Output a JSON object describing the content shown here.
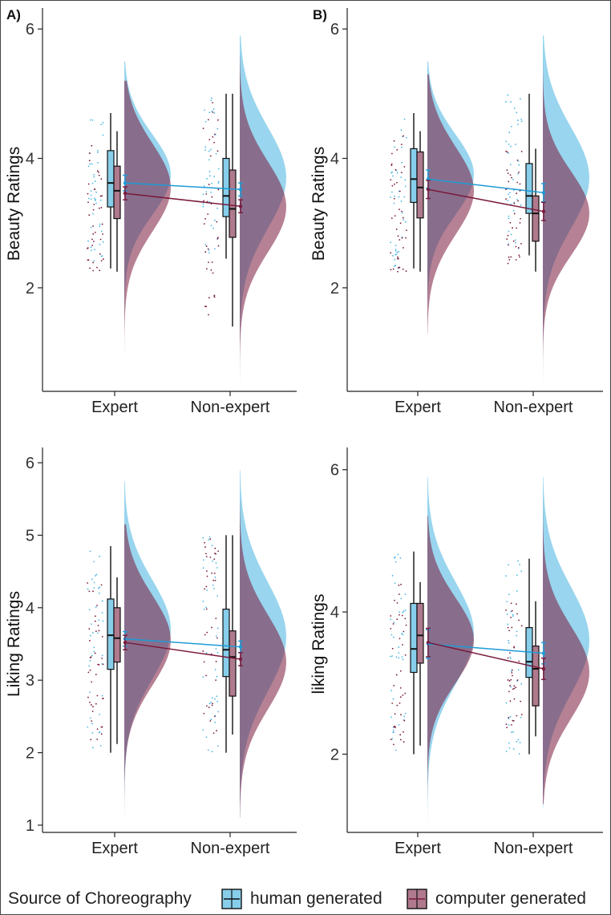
{
  "colors": {
    "human": "#87CEEB",
    "computer": "#7A1A3C",
    "overlap": "#7E6C8C",
    "human_line": "#1E9BD7",
    "computer_line": "#7A1A3C"
  },
  "legend": {
    "title": "Source of Choreography",
    "items": [
      {
        "label": "human generated",
        "key": "human"
      },
      {
        "label": "computer generated",
        "key": "computer"
      }
    ]
  },
  "chart_data": [
    {
      "type": "raincloud",
      "tag": "A)",
      "ylabel": "Beauty Ratings",
      "categories": [
        "Expert",
        "Non-expert"
      ],
      "ylim": [
        0.4,
        6.2
      ],
      "yticks": [
        2,
        4,
        6
      ],
      "groups": [
        {
          "category": "Expert",
          "series": [
            {
              "key": "human",
              "box": [
                2.3,
                3.25,
                3.62,
                4.12,
                4.7
              ],
              "mean": 3.62,
              "ci": [
                3.5,
                3.74
              ],
              "density": {
                "mean": 3.75,
                "sd": 0.62,
                "min": 1.0,
                "max": 5.5
              }
            },
            {
              "key": "computer",
              "box": [
                2.25,
                3.07,
                3.5,
                3.88,
                4.42
              ],
              "mean": 3.46,
              "ci": [
                3.36,
                3.56
              ],
              "density": {
                "mean": 3.55,
                "sd": 0.68,
                "min": 1.0,
                "max": 5.2
              }
            }
          ]
        },
        {
          "category": "Non-expert",
          "series": [
            {
              "key": "human",
              "box": [
                2.45,
                3.1,
                3.42,
                4.0,
                5.0
              ],
              "mean": 3.52,
              "ci": [
                3.42,
                3.62
              ],
              "density": {
                "mean": 3.7,
                "sd": 0.78,
                "min": 0.45,
                "max": 5.9
              }
            },
            {
              "key": "computer",
              "box": [
                1.4,
                2.78,
                3.22,
                3.82,
                5.0
              ],
              "mean": 3.26,
              "ci": [
                3.16,
                3.36
              ],
              "density": {
                "mean": 3.25,
                "sd": 0.7,
                "min": 0.45,
                "max": 5.6
              }
            }
          ]
        }
      ]
    },
    {
      "type": "raincloud",
      "tag": "B)",
      "ylabel": "Beauty Ratings",
      "categories": [
        "Expert",
        "Non-expert"
      ],
      "ylim": [
        0.4,
        6.2
      ],
      "yticks": [
        2,
        4,
        6
      ],
      "groups": [
        {
          "category": "Expert",
          "series": [
            {
              "key": "human",
              "box": [
                2.3,
                3.32,
                3.68,
                4.15,
                4.7
              ],
              "mean": 3.68,
              "ci": [
                3.54,
                3.82
              ],
              "density": {
                "mean": 3.75,
                "sd": 0.62,
                "min": 1.3,
                "max": 5.5
              }
            },
            {
              "key": "computer",
              "box": [
                2.25,
                3.08,
                3.55,
                4.1,
                4.42
              ],
              "mean": 3.52,
              "ci": [
                3.38,
                3.66
              ],
              "density": {
                "mean": 3.5,
                "sd": 0.68,
                "min": 1.3,
                "max": 5.3
              }
            }
          ]
        },
        {
          "category": "Non-expert",
          "series": [
            {
              "key": "human",
              "box": [
                2.5,
                3.15,
                3.42,
                3.92,
                5.0
              ],
              "mean": 3.47,
              "ci": [
                3.33,
                3.61
              ],
              "density": {
                "mean": 3.7,
                "sd": 0.78,
                "min": 0.45,
                "max": 5.9
              }
            },
            {
              "key": "computer",
              "box": [
                2.25,
                2.72,
                3.15,
                3.42,
                4.15
              ],
              "mean": 3.18,
              "ci": [
                3.04,
                3.32
              ],
              "density": {
                "mean": 3.15,
                "sd": 0.65,
                "min": 0.45,
                "max": 5.5
              }
            }
          ]
        }
      ]
    },
    {
      "type": "raincloud",
      "tag": "",
      "ylabel": "Liking Ratings",
      "categories": [
        "Expert",
        "Non-expert"
      ],
      "ylim": [
        0.9,
        6.1
      ],
      "yticks": [
        1,
        2,
        3,
        4,
        5,
        6
      ],
      "groups": [
        {
          "category": "Expert",
          "series": [
            {
              "key": "human",
              "box": [
                2.0,
                3.15,
                3.62,
                4.12,
                4.85
              ],
              "mean": 3.57,
              "ci": [
                3.47,
                3.67
              ],
              "density": {
                "mean": 3.7,
                "sd": 0.68,
                "min": 1.1,
                "max": 5.75
              }
            },
            {
              "key": "computer",
              "box": [
                2.12,
                3.25,
                3.58,
                4.0,
                4.42
              ],
              "mean": 3.52,
              "ci": [
                3.42,
                3.62
              ],
              "density": {
                "mean": 3.55,
                "sd": 0.62,
                "min": 1.1,
                "max": 5.15
              }
            }
          ]
        },
        {
          "category": "Non-expert",
          "series": [
            {
              "key": "human",
              "box": [
                2.0,
                3.05,
                3.42,
                3.98,
                5.0
              ],
              "mean": 3.46,
              "ci": [
                3.38,
                3.54
              ],
              "density": {
                "mean": 3.6,
                "sd": 0.75,
                "min": 1.1,
                "max": 5.9
              }
            },
            {
              "key": "computer",
              "box": [
                2.25,
                2.78,
                3.32,
                3.68,
                5.0
              ],
              "mean": 3.29,
              "ci": [
                3.2,
                3.38
              ],
              "density": {
                "mean": 3.25,
                "sd": 0.65,
                "min": 1.1,
                "max": 5.5
              }
            }
          ]
        }
      ]
    },
    {
      "type": "raincloud",
      "tag": "",
      "ylabel": "liking Ratings",
      "categories": [
        "Expert",
        "Non-expert"
      ],
      "ylim": [
        0.9,
        6.2
      ],
      "yticks": [
        2,
        4,
        6
      ],
      "groups": [
        {
          "category": "Expert",
          "series": [
            {
              "key": "human",
              "box": [
                2.0,
                3.15,
                3.48,
                4.12,
                4.85
              ],
              "mean": 3.55,
              "ci": [
                3.35,
                3.75
              ],
              "density": {
                "mean": 3.7,
                "sd": 0.72,
                "min": 1.0,
                "max": 5.9
              }
            },
            {
              "key": "computer",
              "box": [
                2.12,
                3.28,
                3.67,
                4.12,
                4.42
              ],
              "mean": 3.57,
              "ci": [
                3.37,
                3.77
              ],
              "density": {
                "mean": 3.6,
                "sd": 0.6,
                "min": 1.0,
                "max": 5.35
              }
            }
          ]
        },
        {
          "category": "Non-expert",
          "series": [
            {
              "key": "human",
              "box": [
                2.0,
                3.08,
                3.3,
                3.78,
                4.75
              ],
              "mean": 3.42,
              "ci": [
                3.27,
                3.57
              ],
              "density": {
                "mean": 3.6,
                "sd": 0.75,
                "min": 1.25,
                "max": 5.9
              }
            },
            {
              "key": "computer",
              "box": [
                2.25,
                2.68,
                3.2,
                3.52,
                4.15
              ],
              "mean": 3.2,
              "ci": [
                3.05,
                3.35
              ],
              "density": {
                "mean": 3.15,
                "sd": 0.65,
                "min": 1.3,
                "max": 5.6
              }
            }
          ]
        }
      ]
    }
  ]
}
